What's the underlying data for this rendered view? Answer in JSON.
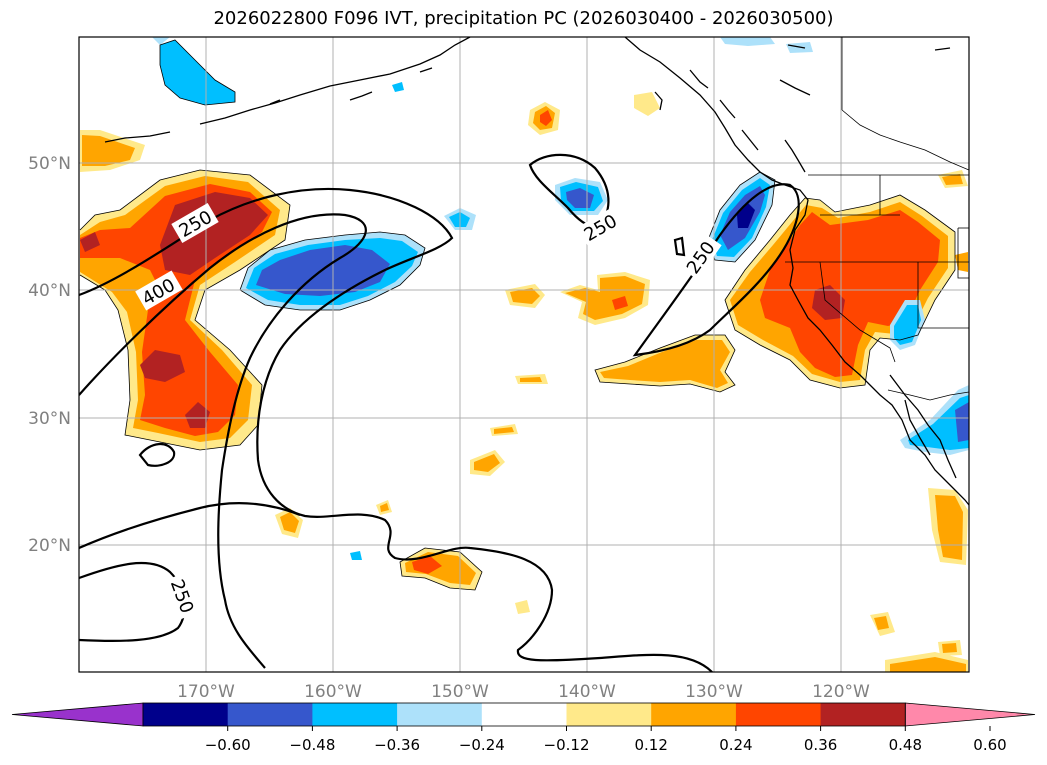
{
  "title": "2026022800 F096 IVT, precipitation PC (2026030400 - 2026030500)",
  "map": {
    "lat_ticks": [
      "50°N",
      "40°N",
      "30°N",
      "20°N"
    ],
    "lon_ticks": [
      "170°W",
      "160°W",
      "150°W",
      "140°W",
      "130°W",
      "120°W"
    ],
    "contour_labels": [
      "250",
      "400",
      "250",
      "250",
      "250"
    ]
  },
  "colorbar": {
    "colors": [
      "#9932CC",
      "#00008B",
      "#3657CC",
      "#00BFFF",
      "#ADE1FA",
      "#FFFFFF",
      "#FFE98A",
      "#FFA500",
      "#FF4500",
      "#B22222",
      "#FF88AA"
    ],
    "tick_labels": [
      "−0.60",
      "−0.48",
      "−0.36",
      "−0.24",
      "−0.12",
      "0.12",
      "0.24",
      "0.36",
      "0.48",
      "0.60"
    ]
  }
}
